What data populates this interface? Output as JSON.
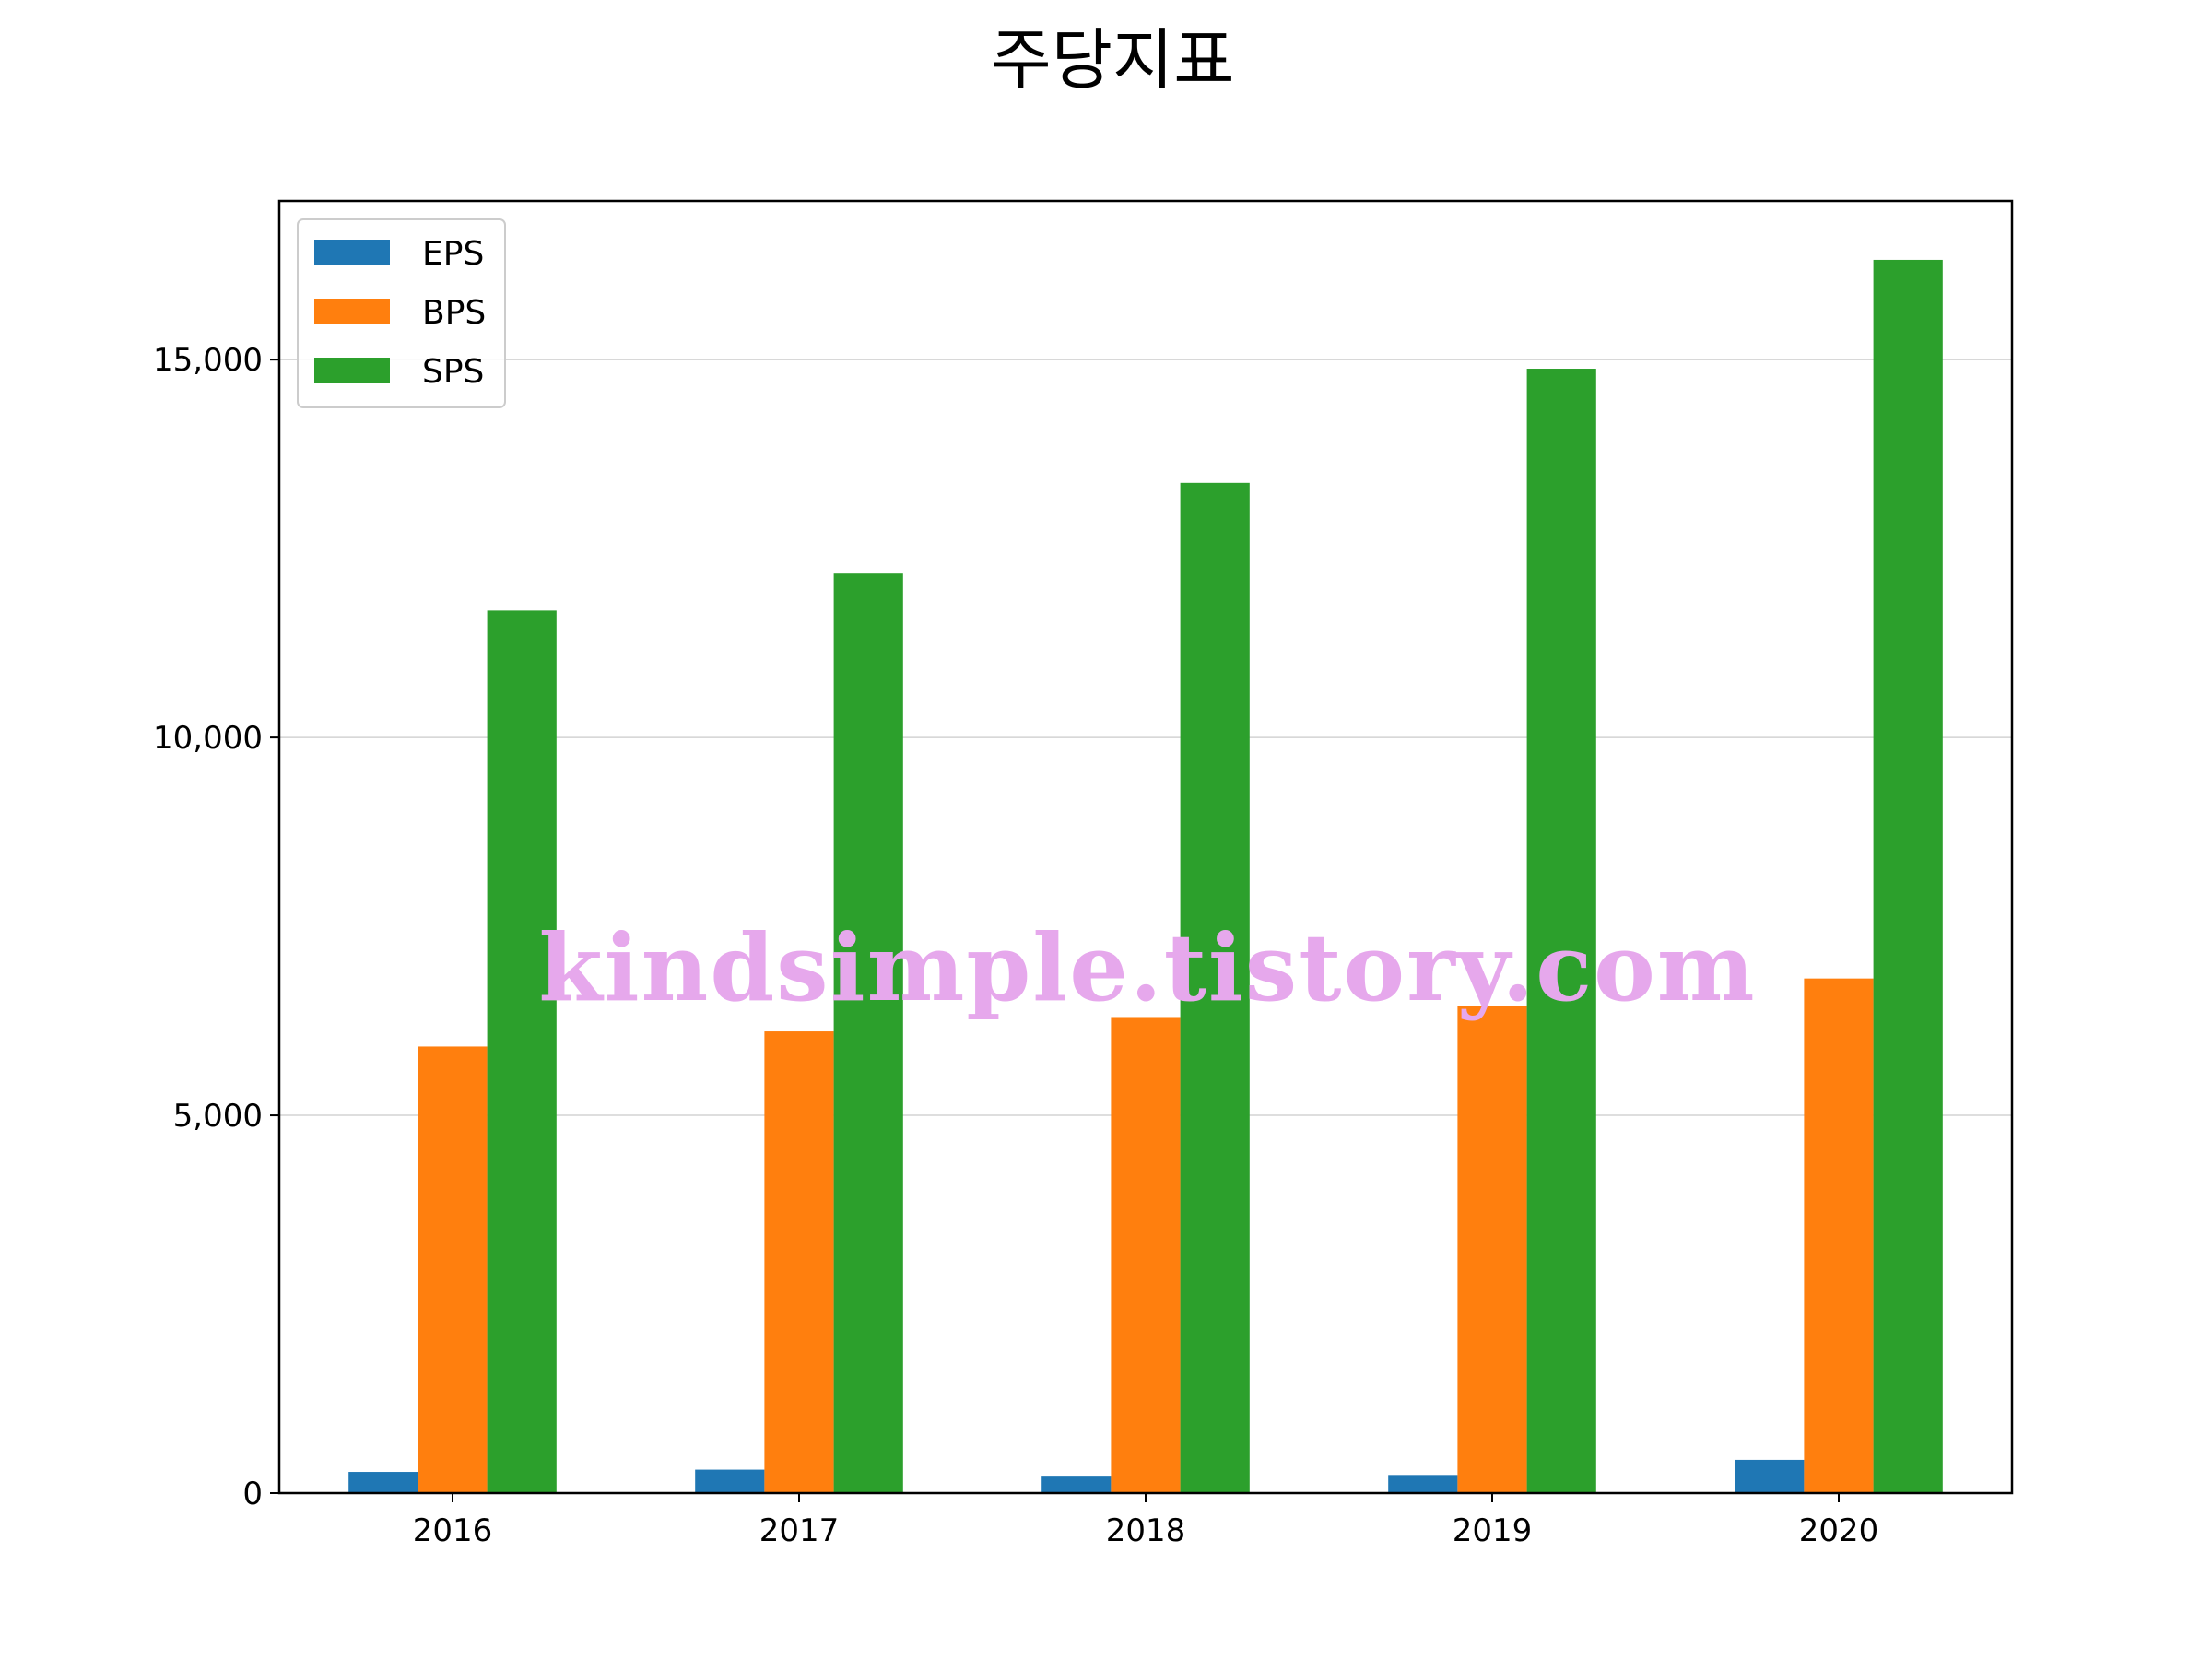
{
  "chart_data": {
    "type": "bar",
    "title": "주당지표",
    "xlabel": "",
    "ylabel": "",
    "categories": [
      "2016",
      "2017",
      "2018",
      "2019",
      "2020"
    ],
    "series": [
      {
        "name": "EPS",
        "color": "#1f77b4",
        "values": [
          280,
          310,
          230,
          240,
          440
        ]
      },
      {
        "name": "BPS",
        "color": "#ff7f0e",
        "values": [
          5910,
          6110,
          6300,
          6440,
          6810
        ]
      },
      {
        "name": "SPS",
        "color": "#2ca02c",
        "values": [
          11680,
          12170,
          13370,
          14880,
          16320
        ]
      }
    ],
    "ylim": [
      0,
      17100
    ],
    "yticks": [
      0,
      5000,
      10000,
      15000
    ],
    "ytick_labels": [
      "0",
      "5,000",
      "10,000",
      "15,000"
    ],
    "grid": "y",
    "legend_position": "top-left"
  },
  "watermark": "kindsimple.tistory.com"
}
